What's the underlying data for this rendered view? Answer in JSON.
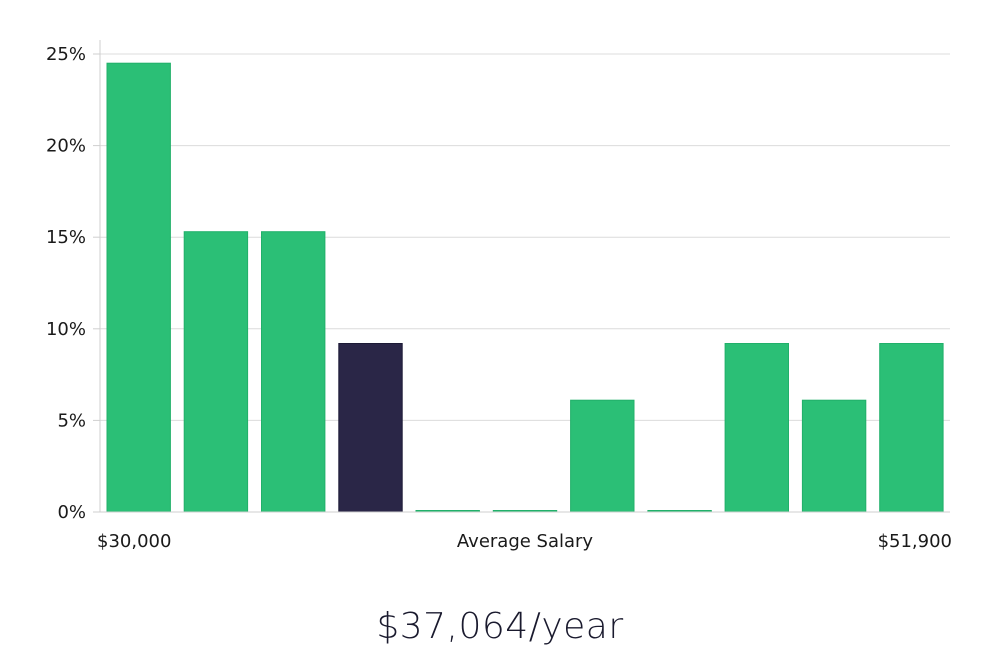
{
  "chart_data": {
    "type": "bar",
    "categories": [
      "1",
      "2",
      "3",
      "4",
      "5",
      "6",
      "7",
      "8",
      "9",
      "10",
      "11"
    ],
    "values": [
      24.5,
      15.3,
      15.3,
      9.2,
      0,
      0,
      6.1,
      0,
      9.2,
      6.1,
      9.2
    ],
    "highlight_index": 3,
    "ylim": [
      0,
      25
    ],
    "y_ticks": [
      0,
      5,
      10,
      15,
      20,
      25
    ],
    "y_tick_format": "percent",
    "x_labels": {
      "left": "$30,000",
      "center": "Average Salary",
      "right": "$51,900"
    },
    "grid": true,
    "colors": {
      "bar": "#2bbf76",
      "bar_border": "#21b06a",
      "highlight": "#2a2647",
      "highlight_border": "#1c1a36",
      "grid": "#dcdcdc"
    }
  },
  "summary": {
    "value": "$37,064/year"
  }
}
